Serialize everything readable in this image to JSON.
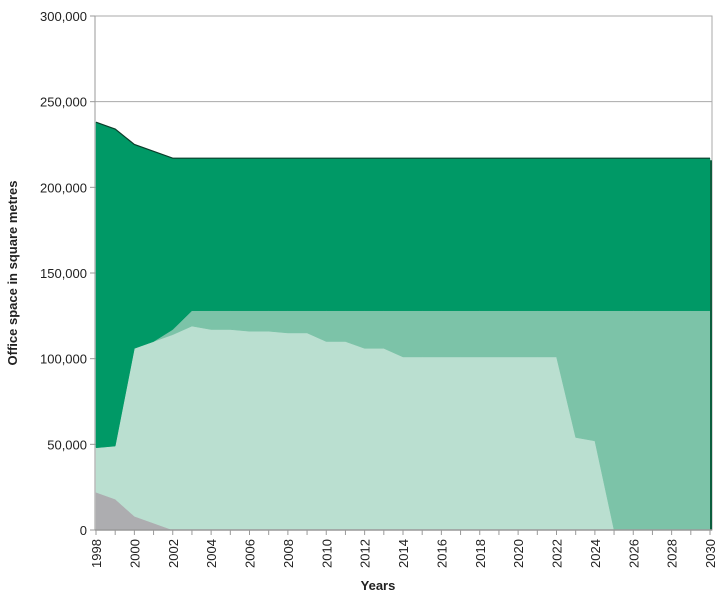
{
  "chart_data": {
    "type": "area",
    "stacked": true,
    "title": "",
    "xlabel": "Years",
    "ylabel": "Office space in square metres",
    "xlim": [
      1998,
      2030
    ],
    "ylim": [
      0,
      300000
    ],
    "yticks": [
      0,
      50000,
      100000,
      150000,
      200000,
      250000,
      300000
    ],
    "ytick_labels": [
      "0",
      "50,000",
      "100,000",
      "150,000",
      "200,000",
      "250,000",
      "300,000"
    ],
    "xtick_labels": [
      "1998",
      "2000",
      "2002",
      "2004",
      "2006",
      "2008",
      "2010",
      "2012",
      "2014",
      "2016",
      "2018",
      "2020",
      "2022",
      "2024",
      "2026",
      "2028",
      "2030"
    ],
    "grid": "horizontal",
    "legend": "none",
    "x": [
      1998,
      1999,
      2000,
      2001,
      2002,
      2003,
      2004,
      2005,
      2006,
      2007,
      2008,
      2009,
      2010,
      2011,
      2012,
      2013,
      2014,
      2015,
      2016,
      2017,
      2018,
      2019,
      2020,
      2021,
      2022,
      2023,
      2024,
      2025,
      2026,
      2027,
      2028,
      2029,
      2030
    ],
    "series": [
      {
        "color": "#adadb0",
        "values": [
          22000,
          18000,
          8000,
          4000,
          0,
          0,
          0,
          0,
          0,
          0,
          0,
          0,
          0,
          0,
          0,
          0,
          0,
          0,
          0,
          0,
          0,
          0,
          0,
          0,
          0,
          0,
          0,
          0,
          0,
          0,
          0,
          0,
          0
        ]
      },
      {
        "color": "#badfd0",
        "values": [
          26000,
          31000,
          98000,
          106000,
          114000,
          119000,
          117000,
          117000,
          116000,
          116000,
          115000,
          115000,
          110000,
          110000,
          106000,
          106000,
          101000,
          101000,
          101000,
          101000,
          101000,
          101000,
          101000,
          101000,
          101000,
          54000,
          52000,
          0,
          0,
          0,
          0,
          0,
          0
        ]
      },
      {
        "color": "#7cc3a8",
        "values": [
          0,
          0,
          0,
          0,
          3000,
          9000,
          11000,
          11000,
          12000,
          12000,
          13000,
          13000,
          18000,
          18000,
          22000,
          22000,
          27000,
          27000,
          27000,
          27000,
          27000,
          27000,
          27000,
          27000,
          27000,
          74000,
          76000,
          128000,
          128000,
          128000,
          128000,
          128000,
          128000
        ]
      },
      {
        "color": "#009966",
        "values": [
          190000,
          185000,
          119000,
          111000,
          100000,
          89000,
          89000,
          89000,
          89000,
          89000,
          89000,
          89000,
          89000,
          89000,
          89000,
          89000,
          89000,
          89000,
          89000,
          89000,
          89000,
          89000,
          89000,
          89000,
          89000,
          89000,
          89000,
          89000,
          89000,
          89000,
          89000,
          89000,
          89000
        ]
      }
    ]
  }
}
